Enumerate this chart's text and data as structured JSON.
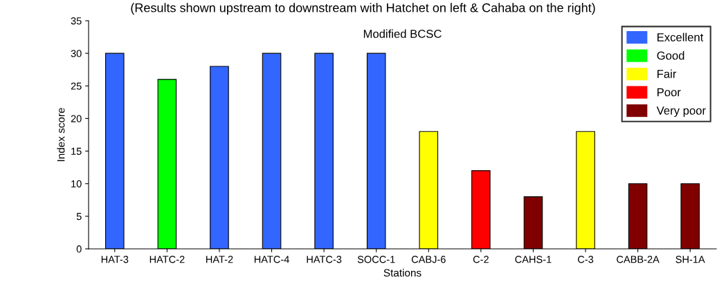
{
  "chart_data": {
    "type": "bar",
    "title": "Modified BCSC",
    "xlabel": "Stations",
    "ylabel": "Index score",
    "annotations": [
      "(Results shown upstream to downstream with Hatchet on left & Cahaba on the right)"
    ],
    "categories": [
      "HAT-3",
      "HATC-2",
      "HAT-2",
      "HATC-4",
      "HATC-3",
      "SOCC-1",
      "CABJ-6",
      "C-2",
      "CAHS-1",
      "C-3",
      "CABB-2A",
      "SH-1A"
    ],
    "series": [
      {
        "name": "Excellent",
        "color": "#3366ff",
        "values": [
          30,
          null,
          28,
          30,
          30,
          30,
          null,
          null,
          null,
          null,
          null,
          null
        ]
      },
      {
        "name": "Good",
        "color": "#00ff00",
        "values": [
          null,
          26,
          null,
          null,
          null,
          null,
          null,
          null,
          null,
          null,
          null,
          null
        ]
      },
      {
        "name": "Fair",
        "color": "#ffff00",
        "values": [
          null,
          null,
          null,
          null,
          null,
          null,
          18,
          null,
          null,
          18,
          null,
          null
        ]
      },
      {
        "name": "Poor",
        "color": "#ff0000",
        "values": [
          null,
          null,
          null,
          null,
          null,
          null,
          null,
          12,
          null,
          null,
          null,
          null
        ]
      },
      {
        "name": "Very poor",
        "color": "#800000",
        "values": [
          null,
          null,
          null,
          null,
          null,
          null,
          null,
          null,
          8,
          null,
          10,
          10
        ]
      }
    ],
    "ylim": [
      0,
      35
    ],
    "yticks": [
      0,
      5,
      10,
      15,
      20,
      25,
      30,
      35
    ],
    "grid": false,
    "legend": "top right"
  }
}
